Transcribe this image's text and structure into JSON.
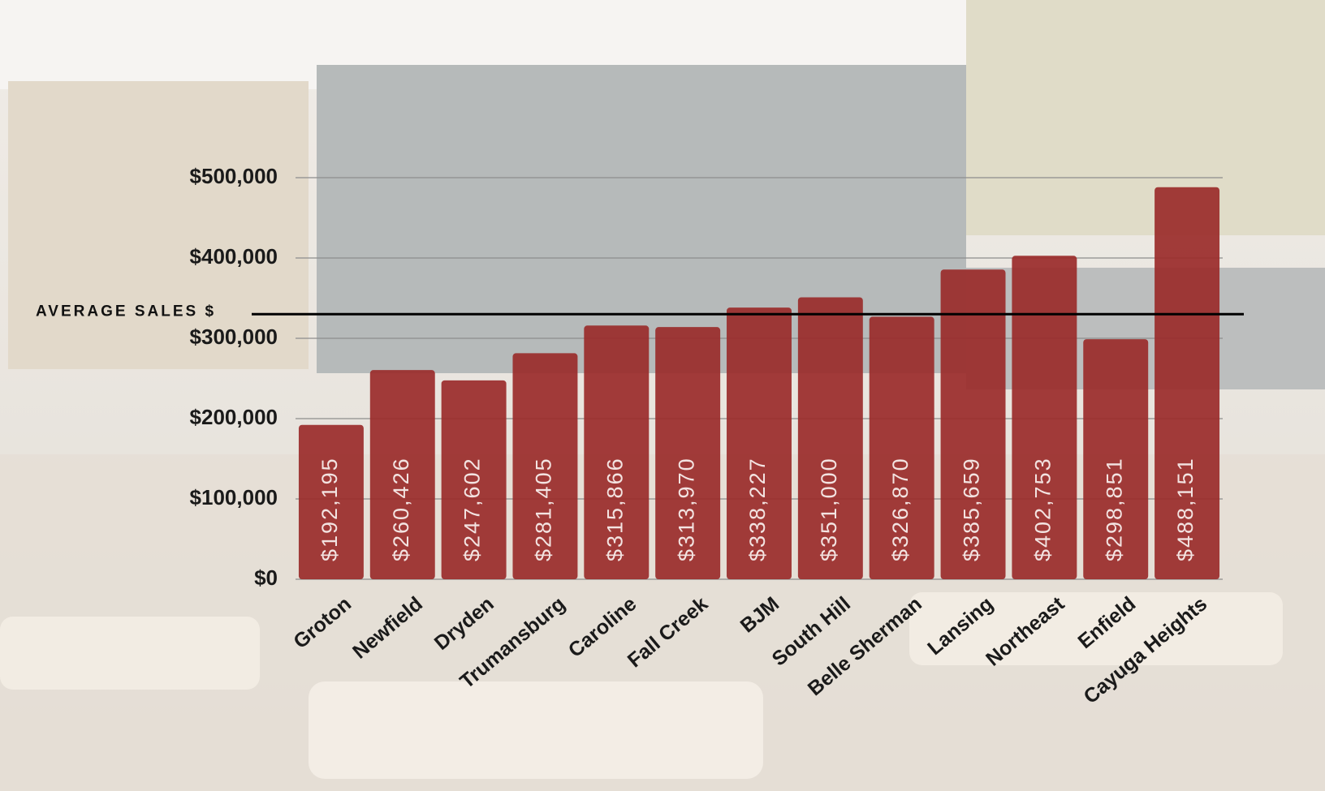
{
  "chart_data": {
    "type": "bar",
    "categories": [
      "Groton",
      "Newfield",
      "Dryden",
      "Trumansburg",
      "Caroline",
      "Fall Creek",
      "BJM",
      "South Hill",
      "Belle Sherman",
      "Lansing",
      "Northeast",
      "Enfield",
      "Cayuga Heights"
    ],
    "values": [
      192195,
      260426,
      247602,
      281405,
      315866,
      313970,
      338227,
      351000,
      326870,
      385659,
      402753,
      298851,
      488151
    ],
    "value_labels": [
      "$192,195",
      "$260,426",
      "$247,602",
      "$281,405",
      "$315,866",
      "$313,970",
      "$338,227",
      "$351,000",
      "$326,870",
      "$385,659",
      "$402,753",
      "$298,851",
      "$488,151"
    ],
    "color": "#9a2b2a",
    "ylim": [
      0,
      500000
    ],
    "yticks": [
      {
        "value": 0,
        "label": "$0"
      },
      {
        "value": 100000,
        "label": "$100,000"
      },
      {
        "value": 200000,
        "label": "$200,000"
      },
      {
        "value": 300000,
        "label": "$300,000"
      },
      {
        "value": 400000,
        "label": "$400,000"
      },
      {
        "value": 500000,
        "label": "$500,000"
      }
    ],
    "grid": true,
    "reference_line": {
      "label": "AVERAGE SALES $",
      "value": 330000
    }
  }
}
